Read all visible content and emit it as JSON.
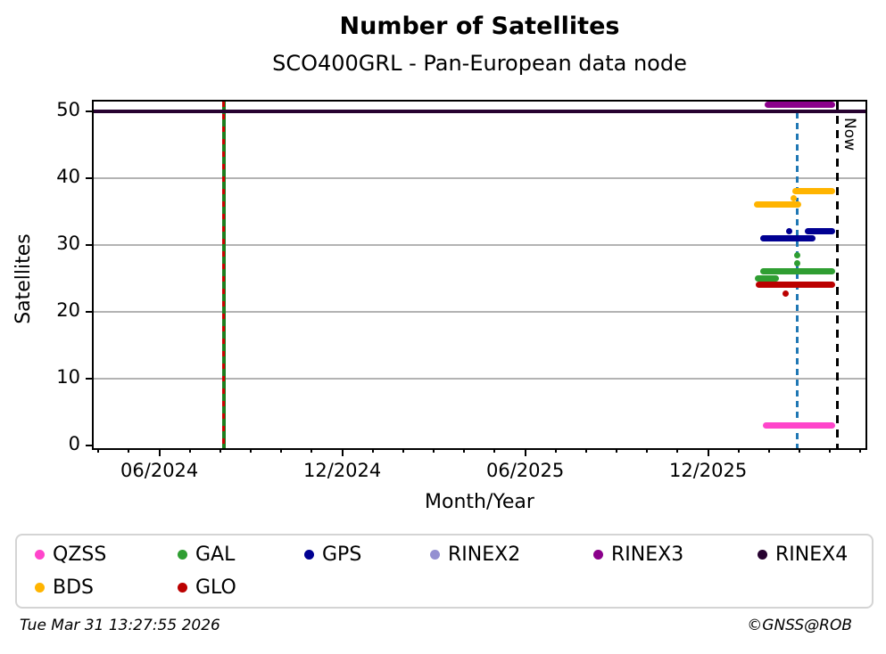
{
  "title": "Number of Satellites",
  "subtitle": "SCO400GRL - Pan-European data node",
  "axes": {
    "xlabel": "Month/Year",
    "ylabel": "Satellites"
  },
  "footer": {
    "timestamp": "Tue Mar 31 13:27:55 2026",
    "copyright": "©GNSS@ROB"
  },
  "legend": {
    "items": [
      {
        "label": "QZSS",
        "color": "#ff45cb"
      },
      {
        "label": "GAL",
        "color": "#2f9e32"
      },
      {
        "label": "GPS",
        "color": "#000092"
      },
      {
        "label": "RINEX2",
        "color": "#9490d1"
      },
      {
        "label": "RINEX3",
        "color": "#8b008b"
      },
      {
        "label": "RINEX4",
        "color": "#270230"
      },
      {
        "label": "BDS",
        "color": "#ffb400"
      },
      {
        "label": "GLO",
        "color": "#bb0000"
      }
    ]
  },
  "chart_data": {
    "type": "line",
    "title": "Number of Satellites",
    "subtitle": "SCO400GRL - Pan-European data node",
    "xlabel": "Month/Year",
    "ylabel": "Satellites",
    "x_unit": "decimal_year",
    "xlim": [
      2024.237,
      2026.347
    ],
    "ylim": [
      -0.45,
      51.45
    ],
    "grid": true,
    "grid_color": "#b3b3b3",
    "legend_position": "bottom",
    "x_major_ticks": [
      {
        "v": 2024.4167,
        "label": "06/2024"
      },
      {
        "v": 2024.9167,
        "label": "12/2024"
      },
      {
        "v": 2025.4167,
        "label": "06/2025"
      },
      {
        "v": 2025.9167,
        "label": "12/2025"
      }
    ],
    "x_minor": {
      "start": 2024.25,
      "end": 2026.3333,
      "step_months": 1,
      "count": 26
    },
    "y_ticks": [
      0,
      10,
      20,
      30,
      40,
      50
    ],
    "event_line": {
      "x": 2024.592,
      "note": "vertical event line ~08/2024, full height",
      "solid_color": "#1e7d1e",
      "dash_color": "#cc0000"
    },
    "ref_lines": [
      {
        "x": 2026.16,
        "color": "#1f77b4",
        "dash": 7,
        "gap": 5,
        "label": ""
      },
      {
        "x": 2026.27,
        "color": "#000000",
        "dash": 9,
        "gap": 7,
        "label": "Now"
      }
    ],
    "series": [
      {
        "name": "RINEX4",
        "color": "#270230",
        "lw": 4,
        "segments": [
          {
            "x1": 2024.237,
            "x2": 2026.347,
            "y": 50
          }
        ],
        "points": []
      },
      {
        "name": "RINEX3",
        "color": "#8b008b",
        "segments": [
          {
            "x1": 2026.08,
            "x2": 2026.256,
            "y": 51
          }
        ],
        "points": []
      },
      {
        "name": "RINEX2",
        "color": "#9490d1",
        "segments": [],
        "points": []
      },
      {
        "name": "QZSS",
        "color": "#ff45cb",
        "segments": [
          {
            "x1": 2026.075,
            "x2": 2026.256,
            "y": 3
          }
        ],
        "points": []
      },
      {
        "name": "BDS",
        "color": "#ffb400",
        "segments": [
          {
            "x1": 2026.051,
            "x2": 2026.163,
            "y": 36
          },
          {
            "x1": 2026.156,
            "x2": 2026.256,
            "y": 38
          }
        ],
        "points": [
          {
            "x": 2026.151,
            "y": 37
          }
        ]
      },
      {
        "name": "GPS",
        "color": "#000092",
        "segments": [
          {
            "x1": 2026.068,
            "x2": 2026.202,
            "y": 31
          },
          {
            "x1": 2026.19,
            "x2": 2026.256,
            "y": 32
          }
        ],
        "points": [
          {
            "x": 2026.139,
            "y": 32
          }
        ]
      },
      {
        "name": "GAL",
        "color": "#2f9e32",
        "segments": [
          {
            "x1": 2026.068,
            "x2": 2026.256,
            "y": 26
          },
          {
            "x1": 2026.053,
            "x2": 2026.102,
            "y": 25
          }
        ],
        "points": [
          {
            "x": 2026.161,
            "y": 28.4
          },
          {
            "x": 2026.161,
            "y": 27.3
          }
        ]
      },
      {
        "name": "GLO",
        "color": "#bb0000",
        "segments": [
          {
            "x1": 2026.056,
            "x2": 2026.256,
            "y": 24
          }
        ],
        "points": [
          {
            "x": 2026.129,
            "y": 22.7
          }
        ]
      }
    ]
  }
}
